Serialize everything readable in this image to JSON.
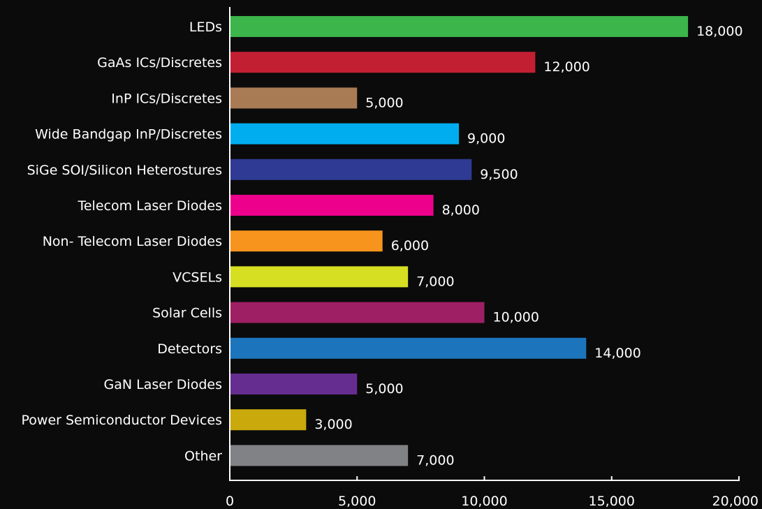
{
  "chart_data": {
    "type": "bar",
    "orientation": "horizontal",
    "categories": [
      "LEDs",
      "GaAs ICs/Discretes",
      "InP ICs/Discretes",
      "Wide Bandgap InP/Discretes",
      "SiGe SOI/Silicon Heterostures",
      "Telecom Laser Diodes",
      "Non- Telecom Laser Diodes",
      "VCSELs",
      "Solar Cells",
      "Detectors",
      "GaN Laser Diodes",
      "Power Semiconductor Devices",
      "Other"
    ],
    "values": [
      18000,
      12000,
      5000,
      9000,
      9500,
      8000,
      6000,
      7000,
      10000,
      14000,
      5000,
      3000,
      7000
    ],
    "value_labels": [
      "18,000",
      "12,000",
      "5,000",
      "9,000",
      "9,500",
      "8,000",
      "6,000",
      "7,000",
      "10,000",
      "14,000",
      "5,000",
      "3,000",
      "7,000"
    ],
    "colors": [
      "#3cb54a",
      "#c21f32",
      "#a87b55",
      "#00aeef",
      "#2e3a93",
      "#ec008c",
      "#f7941d",
      "#d7df23",
      "#9e1f63",
      "#1c75bc",
      "#662d91",
      "#c9a90c",
      "#808285"
    ],
    "xlim": [
      0,
      20000
    ],
    "xticks": [
      0,
      5000,
      10000,
      15000,
      20000
    ],
    "xtick_labels": [
      "0",
      "5,000",
      "10,000",
      "15,000",
      "20,000"
    ],
    "title": "",
    "xlabel": "",
    "ylabel": "",
    "grid": false,
    "legend": "none",
    "background": "#0b0b0b",
    "text_color": "#ffffff"
  }
}
